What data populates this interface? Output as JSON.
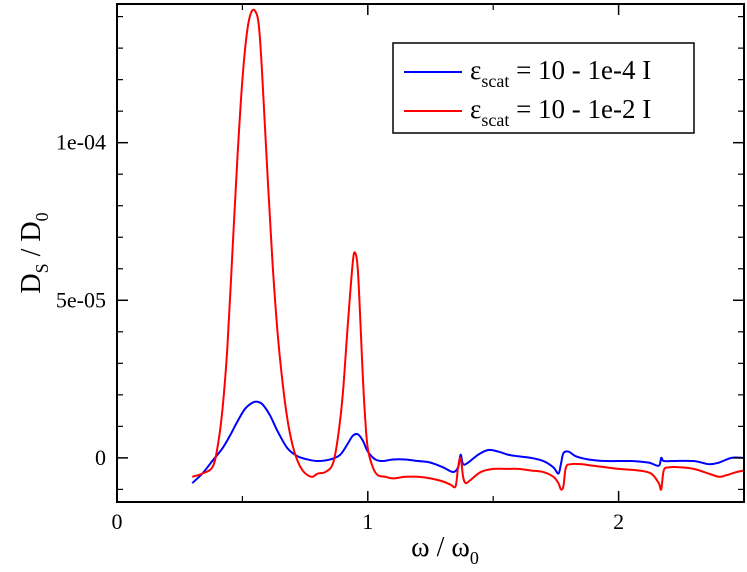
{
  "chart_data": {
    "type": "line",
    "xlabel": {
      "main": "ω / ω",
      "sub": "0"
    },
    "ylabel": {
      "main": "D",
      "sub1": "S",
      "mid": " / D",
      "sub2": "0"
    },
    "xlim": [
      0,
      2.5
    ],
    "ylim": [
      -1.4e-05,
      0.000144
    ],
    "xticks": [
      0,
      1,
      2
    ],
    "xtick_labels": [
      "0",
      "1",
      "2"
    ],
    "yticks": [
      0,
      5e-05,
      0.0001
    ],
    "ytick_labels": [
      "0",
      "5e-05",
      "1e-04"
    ],
    "grid": false,
    "legend_position": "top-right",
    "series": [
      {
        "name": "ε_scat = 10 - 1e-4 I",
        "legend": {
          "symbol": "ε",
          "sub": "scat",
          "rest": " = 10 - 1e-4 I"
        },
        "color": "#0000ff",
        "x": [
          0.3,
          0.34,
          0.38,
          0.42,
          0.45,
          0.48,
          0.51,
          0.54,
          0.56,
          0.58,
          0.61,
          0.64,
          0.68,
          0.72,
          0.76,
          0.8,
          0.85,
          0.89,
          0.92,
          0.94,
          0.96,
          0.98,
          1.0,
          1.03,
          1.06,
          1.1,
          1.15,
          1.2,
          1.25,
          1.3,
          1.34,
          1.36,
          1.37,
          1.38,
          1.4,
          1.44,
          1.48,
          1.52,
          1.56,
          1.6,
          1.65,
          1.7,
          1.74,
          1.76,
          1.77,
          1.78,
          1.8,
          1.83,
          1.88,
          1.95,
          2.05,
          2.12,
          2.16,
          2.17,
          2.18,
          2.22,
          2.3,
          2.36,
          2.4,
          2.45,
          2.5
        ],
        "y": [
          -8e-06,
          -5e-06,
          -1e-06,
          3e-06,
          7e-06,
          1.15e-05,
          1.55e-05,
          1.75e-05,
          1.78e-05,
          1.7e-05,
          1.35e-05,
          8.5e-06,
          3e-06,
          5e-07,
          -5e-07,
          -1e-06,
          -5e-07,
          1e-06,
          4.5e-06,
          7e-06,
          7.5e-06,
          5.5e-06,
          2e-06,
          -5e-07,
          -1e-06,
          -5e-07,
          -5e-07,
          -1e-06,
          -1.5e-06,
          -3e-06,
          -4.5e-06,
          -3e-06,
          1e-06,
          -2e-06,
          -1.5e-06,
          1e-06,
          2.5e-06,
          2e-06,
          1e-06,
          5e-07,
          0.0,
          -1e-06,
          -3e-06,
          -5e-06,
          -2e-06,
          1.5e-06,
          2e-06,
          5e-07,
          -5e-07,
          -1e-06,
          -1e-06,
          -1.5e-06,
          -2.5e-06,
          0.0,
          -1e-06,
          -1e-06,
          -1e-06,
          -2e-06,
          -1.5e-06,
          0.0,
          0.0
        ]
      },
      {
        "name": "ε_scat = 10 - 1e-2 I",
        "legend": {
          "symbol": "ε",
          "sub": "scat",
          "rest": " = 10 - 1e-2 I"
        },
        "color": "#ff0000",
        "x": [
          0.3,
          0.34,
          0.38,
          0.4,
          0.42,
          0.44,
          0.46,
          0.48,
          0.5,
          0.52,
          0.54,
          0.56,
          0.57,
          0.58,
          0.6,
          0.62,
          0.64,
          0.66,
          0.68,
          0.7,
          0.72,
          0.74,
          0.76,
          0.78,
          0.8,
          0.83,
          0.86,
          0.88,
          0.9,
          0.92,
          0.94,
          0.95,
          0.96,
          0.97,
          0.98,
          0.99,
          1.0,
          1.02,
          1.04,
          1.07,
          1.1,
          1.15,
          1.2,
          1.25,
          1.3,
          1.33,
          1.35,
          1.36,
          1.37,
          1.38,
          1.39,
          1.41,
          1.45,
          1.5,
          1.55,
          1.6,
          1.65,
          1.7,
          1.74,
          1.76,
          1.77,
          1.78,
          1.79,
          1.81,
          1.85,
          1.9,
          2.0,
          2.08,
          2.13,
          2.16,
          2.17,
          2.18,
          2.2,
          2.25,
          2.3,
          2.36,
          2.4,
          2.43,
          2.47,
          2.5
        ],
        "y": [
          -6e-06,
          -5e-06,
          -3e-06,
          3e-06,
          1.5e-05,
          3.5e-05,
          6.5e-05,
          9.5e-05,
          0.00012,
          0.000136,
          0.000142,
          0.00014,
          0.000133,
          0.00012,
          9e-05,
          6.2e-05,
          4e-05,
          2.4e-05,
          1.2e-05,
          4e-06,
          -1e-06,
          -4e-06,
          -5.5e-06,
          -6e-06,
          -5e-06,
          -4.5e-06,
          -2e-06,
          6e-06,
          2e-05,
          4.2e-05,
          6.2e-05,
          6.5e-05,
          6e-05,
          4.4e-05,
          2.6e-05,
          1.2e-05,
          3e-06,
          -3e-06,
          -5.5e-06,
          -6e-06,
          -6.5e-06,
          -6e-06,
          -6e-06,
          -6.5e-06,
          -7.5e-06,
          -8.5e-06,
          -9e-06,
          -3e-06,
          0.0,
          -6e-06,
          -8e-06,
          -7e-06,
          -4.5e-06,
          -3.5e-06,
          -3.5e-06,
          -3.5e-06,
          -4e-06,
          -4.5e-06,
          -6e-06,
          -8e-06,
          -1e-05,
          -9e-06,
          -3e-06,
          -2e-06,
          -2e-06,
          -2.5e-06,
          -3.5e-06,
          -4e-06,
          -5e-06,
          -8e-06,
          -1e-05,
          -4e-06,
          -3e-06,
          -3e-06,
          -3.5e-06,
          -5e-06,
          -6e-06,
          -5.5e-06,
          -4.5e-06,
          -4e-06
        ]
      }
    ]
  }
}
